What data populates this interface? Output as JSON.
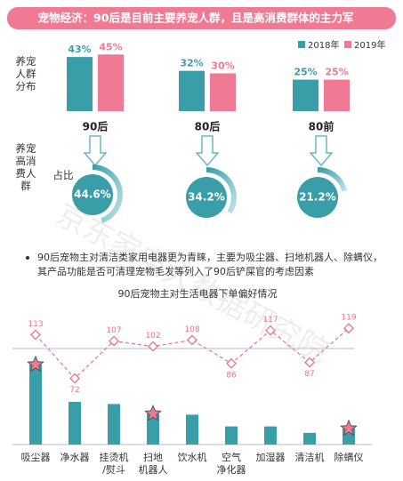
{
  "header": {
    "title": "宠物经济：90后是目前主要养宠人群，且是高消费群体的主力军"
  },
  "note": "90后宠物主对清洁类家用电器更为青睐，主要为吸尘器、扫地机器人、除螨仪，其产品功能是否可清理宠物毛发等列入了90后铲屎官的考虑因素",
  "watermark": "京东家电大数据研究院",
  "chart_data": [
    {
      "type": "bar",
      "y_label": "养宠人群分布",
      "categories": [
        "90后",
        "80后",
        "80前"
      ],
      "ylim": [
        0,
        60
      ],
      "legend": "top-right",
      "series": [
        {
          "name": "2018年",
          "color": "#3a9ea8",
          "values": [
            43,
            32,
            25
          ],
          "value_labels": [
            "43%",
            "32%",
            "25%"
          ]
        },
        {
          "name": "2019年",
          "color": "#f07a94",
          "values": [
            45,
            30,
            25
          ],
          "value_labels": [
            "45%",
            "30%",
            "25%"
          ]
        }
      ]
    },
    {
      "type": "donut",
      "y_label": "养宠高消费人群",
      "sub_label": "占比",
      "color": "#3a9ea8",
      "values": [
        44.6,
        34.2,
        21.2
      ],
      "value_labels": [
        "44.6%",
        "34.2%",
        "21.2%"
      ]
    },
    {
      "type": "bar_line",
      "title": "90后宠物主对生活电器下单偏好情况",
      "categories": [
        "吸尘器",
        "净水器",
        "挂烫机\n/熨斗",
        "扫地\n机器人",
        "饮水机",
        "空气\n净化器",
        "加湿器",
        "清洁机",
        "除螨仪"
      ],
      "bar_color": "#3a9ea8",
      "bar_values": [
        75,
        40,
        38,
        29,
        28,
        17,
        17,
        11,
        15
      ],
      "ylim": [
        0,
        125
      ],
      "line_color": "#e8748f",
      "line_values": [
        113,
        72,
        107,
        102,
        108,
        86,
        117,
        87,
        119
      ],
      "y2lim": [
        10,
        135
      ],
      "reference_line": 100,
      "highlighted": [
        0,
        3,
        8
      ]
    }
  ]
}
